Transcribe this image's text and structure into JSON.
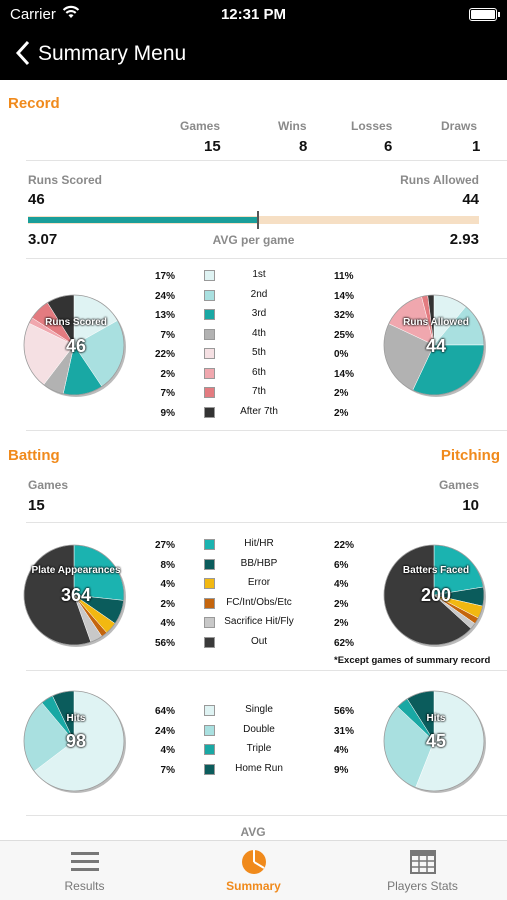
{
  "status": {
    "carrier": "Carrier",
    "time": "12:31 PM"
  },
  "nav": {
    "title": "Summary Menu"
  },
  "record": {
    "title": "Record",
    "headers": {
      "games": "Games",
      "wins": "Wins",
      "losses": "Losses",
      "draws": "Draws"
    },
    "values": {
      "games": "15",
      "wins": "8",
      "losses": "6",
      "draws": "1"
    },
    "runs_scored_label": "Runs Scored",
    "runs_allowed_label": "Runs Allowed",
    "runs_scored": "46",
    "runs_allowed": "44",
    "avg_scored": "3.07",
    "avg_allowed": "2.93",
    "avg_label": "AVG per game",
    "scored_fraction": 0.51
  },
  "innings_legend": [
    {
      "label": "1st",
      "left": "17%",
      "right": "11%",
      "color": "#dff3f3"
    },
    {
      "label": "2nd",
      "left": "24%",
      "right": "14%",
      "color": "#a9e0e0"
    },
    {
      "label": "3rd",
      "left": "13%",
      "right": "32%",
      "color": "#19a8a4"
    },
    {
      "label": "4th",
      "left": "7%",
      "right": "25%",
      "color": "#b2b2b2"
    },
    {
      "label": "5th",
      "left": "22%",
      "right": "0%",
      "color": "#f5e0e3"
    },
    {
      "label": "6th",
      "left": "2%",
      "right": "14%",
      "color": "#f0a7ae"
    },
    {
      "label": "7th",
      "left": "7%",
      "right": "2%",
      "color": "#e37b80"
    },
    {
      "label": "After 7th",
      "left": "9%",
      "right": "2%",
      "color": "#333333"
    }
  ],
  "runs_pies": {
    "scored": {
      "label": "Runs Scored",
      "value": "46"
    },
    "allowed": {
      "label": "Runs Allowed",
      "value": "44"
    }
  },
  "batting": {
    "title": "Batting",
    "games_label": "Games",
    "games": "15"
  },
  "pitching": {
    "title": "Pitching",
    "games_label": "Games",
    "games": "10"
  },
  "pa_legend": [
    {
      "label": "Hit/HR",
      "left": "27%",
      "right": "22%",
      "color": "#1bb3b0"
    },
    {
      "label": "BB/HBP",
      "left": "8%",
      "right": "6%",
      "color": "#0b5c5c"
    },
    {
      "label": "Error",
      "left": "4%",
      "right": "4%",
      "color": "#f2b811"
    },
    {
      "label": "FC/Int/Obs/Etc",
      "left": "2%",
      "right": "2%",
      "color": "#c4650d"
    },
    {
      "label": "Sacrifice Hit/Fly",
      "left": "4%",
      "right": "2%",
      "color": "#c8c8c8"
    },
    {
      "label": "Out",
      "left": "56%",
      "right": "62%",
      "color": "#3a3a3a"
    }
  ],
  "pa_pies": {
    "left": {
      "label": "Plate Appearances",
      "value": "364"
    },
    "right": {
      "label": "Batters Faced",
      "value": "200"
    }
  },
  "pa_note": "*Except games of summary record",
  "hits_legend": [
    {
      "label": "Single",
      "left": "64%",
      "right": "56%",
      "color": "#dff3f3"
    },
    {
      "label": "Double",
      "left": "24%",
      "right": "31%",
      "color": "#a9e0e0"
    },
    {
      "label": "Triple",
      "left": "4%",
      "right": "4%",
      "color": "#19a8a4"
    },
    {
      "label": "Home Run",
      "left": "7%",
      "right": "9%",
      "color": "#0b5c5c"
    }
  ],
  "hits_pies": {
    "left": {
      "label": "Hits",
      "value": "98"
    },
    "right": {
      "label": "Hits",
      "value": "45"
    }
  },
  "avg_section_label": "AVG",
  "tabs": [
    {
      "label": "Results",
      "icon": "list-icon"
    },
    {
      "label": "Summary",
      "icon": "pie-chart-icon"
    },
    {
      "label": "Players Stats",
      "icon": "grid-icon"
    }
  ]
}
